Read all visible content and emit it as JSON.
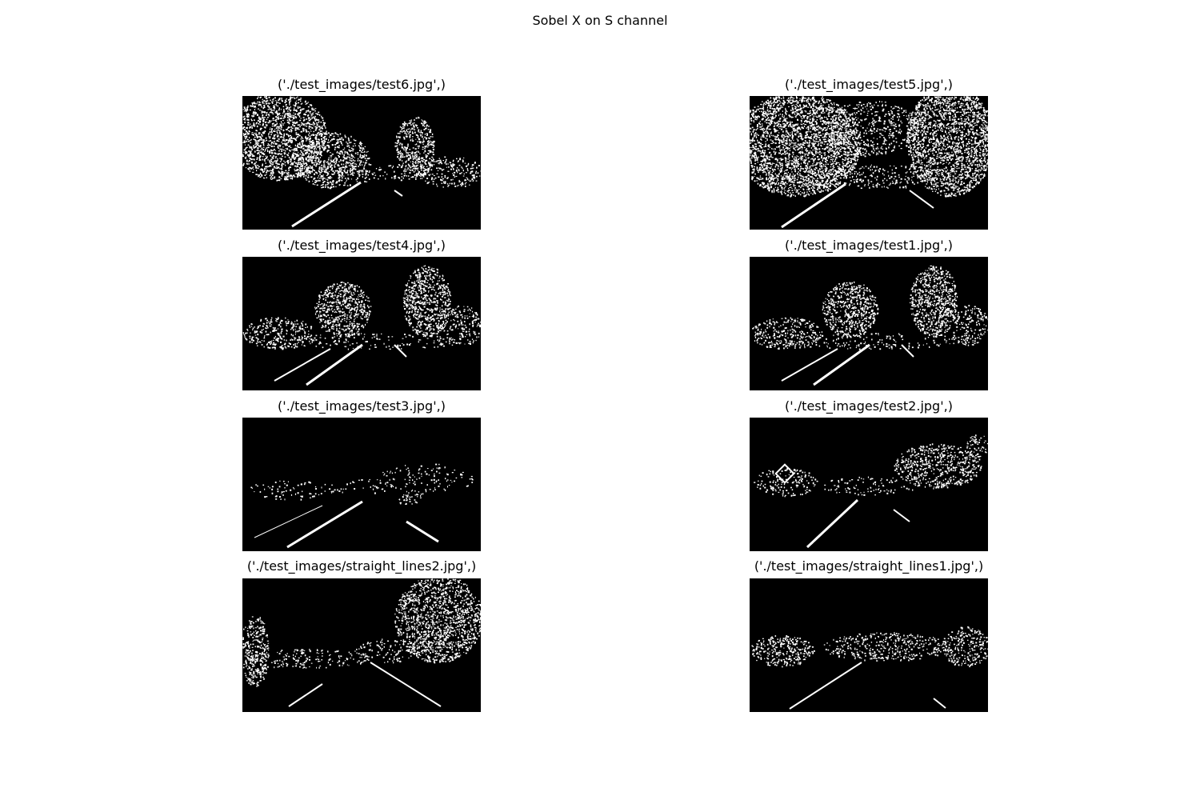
{
  "figure": {
    "title": "Sobel X on S channel"
  },
  "panels": [
    {
      "title": "('./test_images/test6.jpg',)",
      "scene": "trees-both"
    },
    {
      "title": "('./test_images/test5.jpg',)",
      "scene": "dense-trees"
    },
    {
      "title": "('./test_images/test4.jpg',)",
      "scene": "two-trees"
    },
    {
      "title": "('./test_images/test1.jpg',)",
      "scene": "two-trees"
    },
    {
      "title": "('./test_images/test3.jpg',)",
      "scene": "sparse"
    },
    {
      "title": "('./test_images/test2.jpg',)",
      "scene": "sign-right-trees"
    },
    {
      "title": "('./test_images/straight_lines2.jpg',)",
      "scene": "straight-right-tree"
    },
    {
      "title": "('./test_images/straight_lines1.jpg',)",
      "scene": "straight-low"
    }
  ],
  "colors": {
    "background": "#ffffff",
    "panel": "#000000",
    "edges": "#ffffff"
  }
}
